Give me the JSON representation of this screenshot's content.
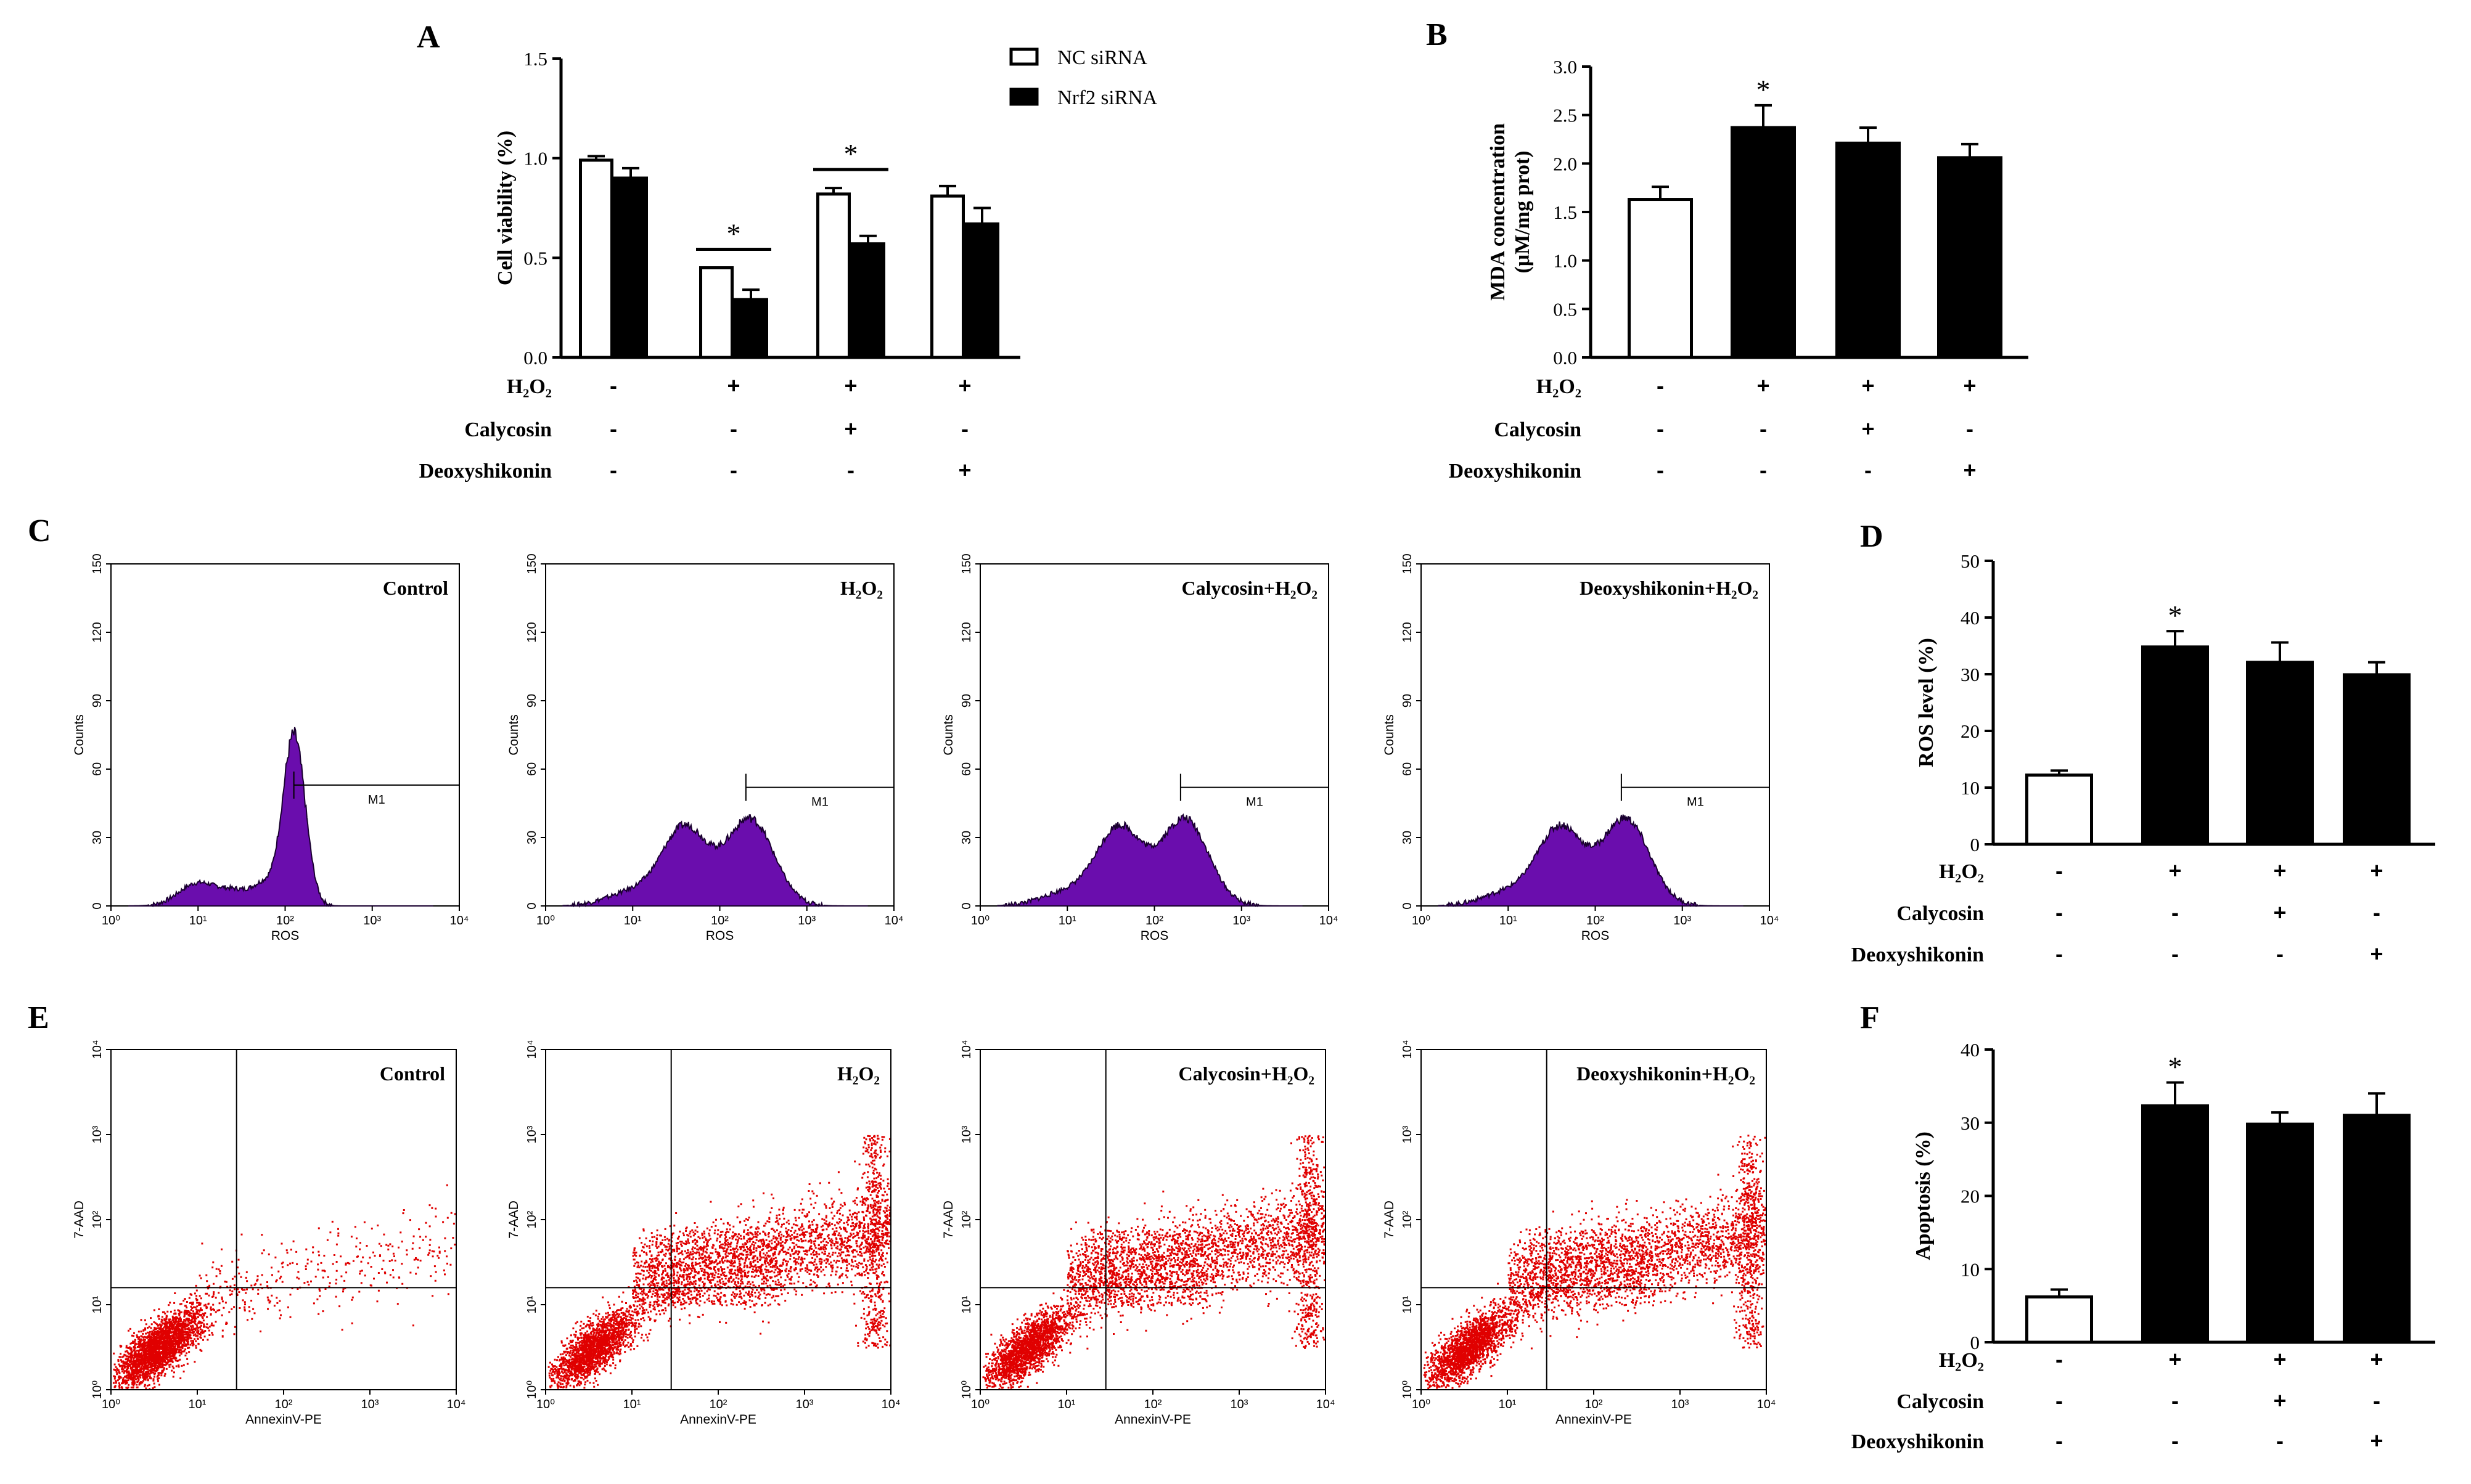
{
  "colors": {
    "black": "#000000",
    "white": "#ffffff",
    "histogram_fill": "#6a0dad",
    "dot": "#e00000"
  },
  "panel_letters": [
    "A",
    "B",
    "C",
    "D",
    "E",
    "F"
  ],
  "sign_plus": "+",
  "sign_minus": "-",
  "chart_data": [
    {
      "panel": "A",
      "type": "bar",
      "ylabel": "Cell viability (%)",
      "ylim": [
        0,
        1.5
      ],
      "yticks": [
        "0.0",
        "0.5",
        "1.0",
        "1.5"
      ],
      "series": [
        {
          "name": "NC siRNA",
          "values": [
            0.99,
            0.45,
            0.82,
            0.81
          ],
          "errors": [
            0.02,
            0.0,
            0.03,
            0.05
          ]
        },
        {
          "name": "Nrf2 siRNA",
          "values": [
            0.9,
            0.29,
            0.57,
            0.67
          ],
          "errors": [
            0.05,
            0.05,
            0.04,
            0.08
          ]
        }
      ],
      "significance": [
        "",
        "*",
        "*",
        ""
      ],
      "conditions": [
        {
          "label": "H₂O₂",
          "signs": [
            "-",
            "+",
            "+",
            "+"
          ]
        },
        {
          "label": "Calycosin",
          "signs": [
            "-",
            "-",
            "+",
            "-"
          ]
        },
        {
          "label": "Deoxyshikonin",
          "signs": [
            "-",
            "-",
            "-",
            "+"
          ]
        }
      ]
    },
    {
      "panel": "B",
      "type": "bar",
      "ylabel_lines": [
        "MDA concentration",
        "(μM/mg prot)"
      ],
      "ylim": [
        0,
        3.0
      ],
      "yticks": [
        "0.0",
        "0.5",
        "1.0",
        "1.5",
        "2.0",
        "2.5",
        "3.0"
      ],
      "values": [
        1.63,
        2.37,
        2.21,
        2.06
      ],
      "errors": [
        0.13,
        0.23,
        0.16,
        0.14
      ],
      "significance": [
        "",
        "*",
        "",
        ""
      ],
      "conditions": [
        {
          "label": "H₂O₂",
          "signs": [
            "-",
            "+",
            "+",
            "+"
          ]
        },
        {
          "label": "Calycosin",
          "signs": [
            "-",
            "-",
            "+",
            "-"
          ]
        },
        {
          "label": "Deoxyshikonin",
          "signs": [
            "-",
            "-",
            "-",
            "+"
          ]
        }
      ]
    },
    {
      "panel": "C",
      "type": "histogram",
      "xlabel": "ROS",
      "ylabel": "Counts",
      "yticks": [
        "0",
        "30",
        "60",
        "90",
        "120",
        "150"
      ],
      "xticks": [
        "10⁰",
        "10¹",
        "10²",
        "10³",
        "10⁴"
      ],
      "marker": "M1",
      "plots": [
        {
          "label": "Control",
          "gate_start_log": 2.1
        },
        {
          "label": "H₂O₂",
          "gate_start_log": 2.3
        },
        {
          "label": "Calycosin+H₂O₂",
          "gate_start_log": 2.3
        },
        {
          "label": "Deoxyshikonin+H₂O₂",
          "gate_start_log": 2.3
        }
      ]
    },
    {
      "panel": "D",
      "type": "bar",
      "ylabel": "ROS level (%)",
      "ylim": [
        0,
        50
      ],
      "yticks": [
        "0",
        "10",
        "20",
        "30",
        "40",
        "50"
      ],
      "values": [
        12.2,
        34.8,
        32.1,
        29.9
      ],
      "errors": [
        0.8,
        2.8,
        3.5,
        2.2
      ],
      "significance": [
        "",
        "*",
        "",
        ""
      ],
      "conditions": [
        {
          "label": "H₂O₂",
          "signs": [
            "-",
            "+",
            "+",
            "+"
          ]
        },
        {
          "label": "Calycosin",
          "signs": [
            "-",
            "-",
            "+",
            "-"
          ]
        },
        {
          "label": "Deoxyshikonin",
          "signs": [
            "-",
            "-",
            "-",
            "+"
          ]
        }
      ]
    },
    {
      "panel": "E",
      "type": "scatter",
      "xlabel": "AnnexinV-PE",
      "ylabel": "7-AAD",
      "xticks": [
        "10⁰",
        "10¹",
        "10²",
        "10³",
        "10⁴"
      ],
      "yticks": [
        "10⁰",
        "10¹",
        "10²",
        "10³",
        "10⁴"
      ],
      "plots": [
        {
          "label": "Control"
        },
        {
          "label": "H₂O₂"
        },
        {
          "label": "Calycosin+H₂O₂"
        },
        {
          "label": "Deoxyshikonin+H₂O₂"
        }
      ]
    },
    {
      "panel": "F",
      "type": "bar",
      "ylabel": "Apoptosis (%)",
      "ylim": [
        0,
        40
      ],
      "yticks": [
        "0",
        "10",
        "20",
        "30",
        "40"
      ],
      "values": [
        6.2,
        32.3,
        29.8,
        31.0
      ],
      "errors": [
        1.0,
        3.2,
        1.6,
        3.0
      ],
      "significance": [
        "",
        "*",
        "",
        ""
      ],
      "conditions": [
        {
          "label": "H₂O₂",
          "signs": [
            "-",
            "+",
            "+",
            "+"
          ]
        },
        {
          "label": "Calycosin",
          "signs": [
            "-",
            "-",
            "+",
            "-"
          ]
        },
        {
          "label": "Deoxyshikonin",
          "signs": [
            "-",
            "-",
            "-",
            "+"
          ]
        }
      ]
    }
  ]
}
